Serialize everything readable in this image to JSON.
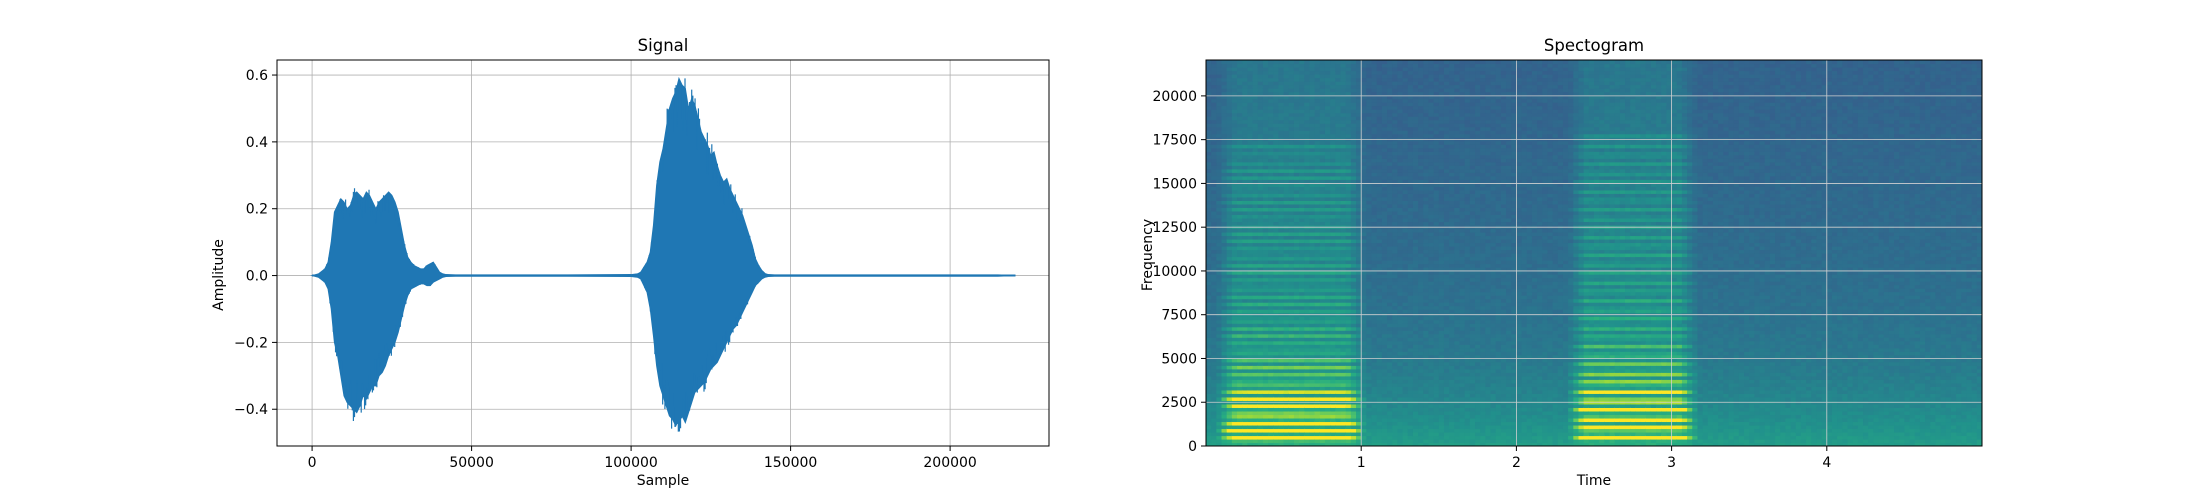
{
  "chart_data": [
    {
      "type": "line",
      "title": "Signal",
      "xlabel": "Sample",
      "ylabel": "Amplitude",
      "xlim": [
        -11000,
        231000
      ],
      "ylim": [
        -0.51,
        0.645
      ],
      "xticks": [
        0,
        50000,
        100000,
        150000,
        200000
      ],
      "yticks": [
        -0.4,
        -0.2,
        0.0,
        0.2,
        0.4,
        0.6
      ],
      "xtick_labels": [
        "0",
        "50000",
        "100000",
        "150000",
        "200000"
      ],
      "ytick_labels": [
        "−0.4",
        "−0.2",
        "0.0",
        "0.2",
        "0.4",
        "0.6"
      ],
      "grid": true,
      "color": "#1f77b4",
      "series": [
        {
          "x": [
            0,
            2000,
            4000,
            5000,
            6000,
            7000,
            8000,
            9000,
            10000,
            11000,
            12000,
            13000,
            14000,
            15000,
            16000,
            17000,
            18000,
            19000,
            20000,
            21000,
            22000,
            23000,
            24000,
            25000,
            26000,
            27000,
            28000,
            29000,
            30000,
            31000,
            32000,
            33000,
            34000,
            35000,
            36000,
            37000,
            38000,
            39000,
            40000,
            41000,
            42000,
            45000,
            60000,
            80000,
            100000,
            102000,
            103000,
            104000,
            105000,
            106000,
            107000,
            108000,
            109000,
            110000,
            111000,
            112000,
            113000,
            114000,
            115000,
            116000,
            117000,
            118000,
            119000,
            120000,
            121000,
            122000,
            123000,
            124000,
            125000,
            126000,
            127000,
            128000,
            129000,
            130000,
            131000,
            132000,
            133000,
            134000,
            135000,
            136000,
            137000,
            138000,
            139000,
            140000,
            141000,
            142000,
            143000,
            145000,
            160000,
            180000,
            200000,
            215000,
            220500
          ],
          "upper": [
            0.0,
            0.005,
            0.02,
            0.04,
            0.1,
            0.19,
            0.21,
            0.23,
            0.22,
            0.2,
            0.21,
            0.24,
            0.25,
            0.24,
            0.23,
            0.25,
            0.24,
            0.22,
            0.2,
            0.22,
            0.23,
            0.24,
            0.25,
            0.24,
            0.22,
            0.19,
            0.14,
            0.09,
            0.055,
            0.04,
            0.03,
            0.025,
            0.02,
            0.02,
            0.03,
            0.035,
            0.04,
            0.025,
            0.01,
            0.005,
            0.003,
            0.002,
            0.002,
            0.002,
            0.003,
            0.005,
            0.01,
            0.025,
            0.04,
            0.07,
            0.15,
            0.27,
            0.34,
            0.38,
            0.44,
            0.5,
            0.53,
            0.55,
            0.59,
            0.57,
            0.56,
            0.5,
            0.53,
            0.51,
            0.47,
            0.43,
            0.41,
            0.39,
            0.36,
            0.37,
            0.33,
            0.3,
            0.28,
            0.29,
            0.26,
            0.24,
            0.22,
            0.2,
            0.18,
            0.15,
            0.12,
            0.09,
            0.05,
            0.03,
            0.015,
            0.006,
            0.003,
            0.002,
            0.002,
            0.002,
            0.002,
            0.002,
            0.0
          ],
          "lower": [
            0.0,
            -0.005,
            -0.02,
            -0.04,
            -0.1,
            -0.2,
            -0.24,
            -0.3,
            -0.36,
            -0.38,
            -0.39,
            -0.4,
            -0.41,
            -0.39,
            -0.36,
            -0.37,
            -0.35,
            -0.33,
            -0.33,
            -0.3,
            -0.29,
            -0.27,
            -0.24,
            -0.22,
            -0.2,
            -0.17,
            -0.13,
            -0.09,
            -0.06,
            -0.04,
            -0.035,
            -0.03,
            -0.025,
            -0.025,
            -0.03,
            -0.03,
            -0.02,
            -0.015,
            -0.01,
            -0.005,
            -0.003,
            -0.002,
            -0.002,
            -0.002,
            -0.003,
            -0.005,
            -0.01,
            -0.03,
            -0.05,
            -0.1,
            -0.18,
            -0.27,
            -0.33,
            -0.36,
            -0.39,
            -0.42,
            -0.43,
            -0.45,
            -0.43,
            -0.42,
            -0.44,
            -0.41,
            -0.38,
            -0.35,
            -0.34,
            -0.33,
            -0.32,
            -0.3,
            -0.28,
            -0.27,
            -0.26,
            -0.24,
            -0.22,
            -0.2,
            -0.18,
            -0.16,
            -0.15,
            -0.13,
            -0.11,
            -0.09,
            -0.07,
            -0.05,
            -0.03,
            -0.02,
            -0.01,
            -0.005,
            -0.003,
            -0.002,
            -0.002,
            -0.002,
            -0.002,
            -0.002,
            0.0
          ]
        }
      ]
    },
    {
      "type": "heatmap",
      "title": "Spectogram",
      "xlabel": "Time",
      "ylabel": "Frequency",
      "xlim": [
        0,
        5.0
      ],
      "ylim": [
        0,
        22050
      ],
      "xticks": [
        1,
        2,
        3,
        4
      ],
      "yticks": [
        0,
        2500,
        5000,
        7500,
        10000,
        12500,
        15000,
        17500,
        20000
      ],
      "xtick_labels": [
        "1",
        "2",
        "3",
        "4"
      ],
      "ytick_labels": [
        "0",
        "2500",
        "5000",
        "7500",
        "10000",
        "12500",
        "15000",
        "17500",
        "20000"
      ],
      "grid": true,
      "colormap": "viridis",
      "segments": [
        {
          "start": 0.12,
          "end": 0.98,
          "f0": 450,
          "num_harmonics": 38,
          "peak_freq": 1500,
          "strength": 1.0
        },
        {
          "start": 2.38,
          "end": 3.12,
          "f0": 520,
          "num_harmonics": 34,
          "peak_freq": 1900,
          "strength": 1.0
        }
      ],
      "noise_floor": 0.38
    }
  ]
}
